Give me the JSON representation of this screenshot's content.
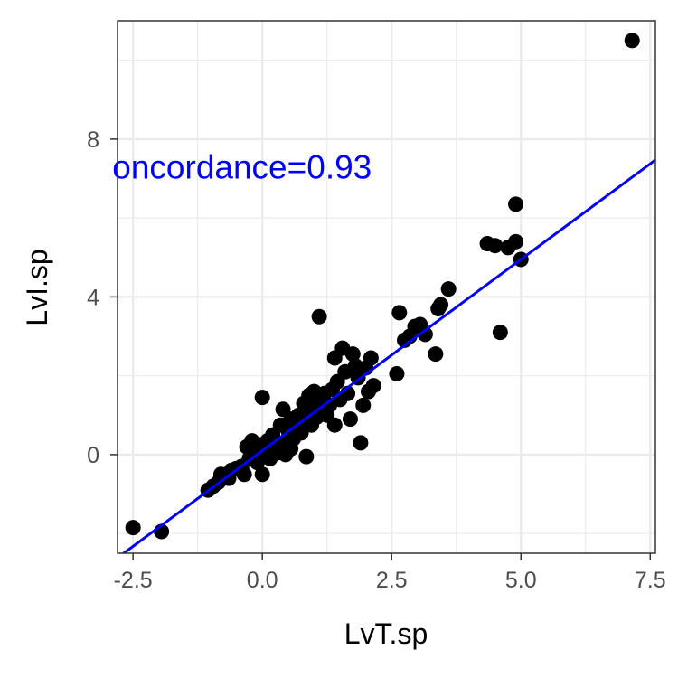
{
  "chart_data": {
    "type": "scatter",
    "xlabel": "LvT.sp",
    "ylabel": "LvI.sp",
    "xlim": [
      -2.8,
      7.6
    ],
    "ylim": [
      -2.5,
      11.0
    ],
    "x_ticks": [
      -2.5,
      0.0,
      2.5,
      5.0,
      7.5
    ],
    "x_tick_labels": [
      "-2.5",
      "0.0",
      "2.5",
      "5.0",
      "7.5"
    ],
    "y_ticks": [
      0,
      4,
      8
    ],
    "y_tick_labels": [
      "0",
      "4",
      "8"
    ],
    "x_minor_ticks": [
      -1.25,
      1.25,
      3.75,
      6.25
    ],
    "y_minor_ticks": [
      -2,
      2,
      6,
      10
    ],
    "grid": true,
    "annotation": {
      "text": "oncordance=0.93",
      "x": -2.9,
      "y": 7.3
    },
    "fit_line": {
      "intercept": 0.1,
      "slope": 0.97,
      "x_range": [
        -2.8,
        7.6
      ]
    },
    "colors": {
      "points": "#000000",
      "fit_line": "#0000ff",
      "annotation": "#0000ff",
      "grid": "#ebebeb",
      "border": "#333333"
    },
    "points": [
      {
        "x": -2.5,
        "y": -1.85
      },
      {
        "x": -1.95,
        "y": -1.95
      },
      {
        "x": -1.05,
        "y": -0.9
      },
      {
        "x": -0.95,
        "y": -0.8
      },
      {
        "x": -0.85,
        "y": -0.7
      },
      {
        "x": -0.8,
        "y": -0.5
      },
      {
        "x": -0.65,
        "y": -0.6
      },
      {
        "x": -0.6,
        "y": -0.4
      },
      {
        "x": -0.5,
        "y": -0.35
      },
      {
        "x": -0.4,
        "y": -0.3
      },
      {
        "x": -0.35,
        "y": -0.5
      },
      {
        "x": -0.3,
        "y": 0.2
      },
      {
        "x": -0.25,
        "y": -0.1
      },
      {
        "x": -0.2,
        "y": 0.35
      },
      {
        "x": -0.15,
        "y": 0.05
      },
      {
        "x": -0.1,
        "y": -0.2
      },
      {
        "x": -0.05,
        "y": 0.25
      },
      {
        "x": 0.0,
        "y": 1.45
      },
      {
        "x": 0.0,
        "y": -0.5
      },
      {
        "x": 0.05,
        "y": 0.1
      },
      {
        "x": 0.1,
        "y": 0.35
      },
      {
        "x": 0.15,
        "y": -0.1
      },
      {
        "x": 0.2,
        "y": 0.5
      },
      {
        "x": 0.25,
        "y": 0.2
      },
      {
        "x": 0.3,
        "y": 0.05
      },
      {
        "x": 0.35,
        "y": 0.75
      },
      {
        "x": 0.4,
        "y": 1.15
      },
      {
        "x": 0.4,
        "y": 0.3
      },
      {
        "x": 0.45,
        "y": 0.0
      },
      {
        "x": 0.5,
        "y": 0.6
      },
      {
        "x": 0.55,
        "y": 0.9
      },
      {
        "x": 0.55,
        "y": 0.15
      },
      {
        "x": 0.6,
        "y": 0.4
      },
      {
        "x": 0.65,
        "y": 0.7
      },
      {
        "x": 0.7,
        "y": 1.0
      },
      {
        "x": 0.75,
        "y": 0.55
      },
      {
        "x": 0.8,
        "y": 1.3
      },
      {
        "x": 0.8,
        "y": 0.8
      },
      {
        "x": 0.85,
        "y": -0.05
      },
      {
        "x": 0.9,
        "y": 1.5
      },
      {
        "x": 0.9,
        "y": 1.05
      },
      {
        "x": 0.95,
        "y": 0.75
      },
      {
        "x": 1.0,
        "y": 1.6
      },
      {
        "x": 1.0,
        "y": 1.2
      },
      {
        "x": 1.05,
        "y": 0.95
      },
      {
        "x": 1.1,
        "y": 3.5
      },
      {
        "x": 1.1,
        "y": 1.45
      },
      {
        "x": 1.15,
        "y": 1.1
      },
      {
        "x": 1.2,
        "y": 1.55
      },
      {
        "x": 1.25,
        "y": 1.0
      },
      {
        "x": 1.3,
        "y": 1.25
      },
      {
        "x": 1.35,
        "y": 1.65
      },
      {
        "x": 1.4,
        "y": 2.45
      },
      {
        "x": 1.4,
        "y": 0.75
      },
      {
        "x": 1.45,
        "y": 1.85
      },
      {
        "x": 1.5,
        "y": 1.4
      },
      {
        "x": 1.55,
        "y": 2.7
      },
      {
        "x": 1.6,
        "y": 2.1
      },
      {
        "x": 1.65,
        "y": 1.55
      },
      {
        "x": 1.7,
        "y": 0.9
      },
      {
        "x": 1.75,
        "y": 2.55
      },
      {
        "x": 1.8,
        "y": 2.25
      },
      {
        "x": 1.85,
        "y": 1.95
      },
      {
        "x": 1.9,
        "y": 0.3
      },
      {
        "x": 1.95,
        "y": 1.25
      },
      {
        "x": 2.0,
        "y": 2.2
      },
      {
        "x": 2.05,
        "y": 1.6
      },
      {
        "x": 2.1,
        "y": 2.45
      },
      {
        "x": 2.15,
        "y": 1.75
      },
      {
        "x": 2.6,
        "y": 2.05
      },
      {
        "x": 2.65,
        "y": 3.6
      },
      {
        "x": 2.75,
        "y": 2.9
      },
      {
        "x": 2.85,
        "y": 3.0
      },
      {
        "x": 2.95,
        "y": 3.25
      },
      {
        "x": 3.05,
        "y": 3.3
      },
      {
        "x": 3.15,
        "y": 3.05
      },
      {
        "x": 3.35,
        "y": 2.55
      },
      {
        "x": 3.4,
        "y": 3.7
      },
      {
        "x": 3.45,
        "y": 3.8
      },
      {
        "x": 3.6,
        "y": 4.2
      },
      {
        "x": 4.35,
        "y": 5.35
      },
      {
        "x": 4.5,
        "y": 5.3
      },
      {
        "x": 4.6,
        "y": 3.1
      },
      {
        "x": 4.75,
        "y": 5.25
      },
      {
        "x": 4.9,
        "y": 5.4
      },
      {
        "x": 4.9,
        "y": 6.35
      },
      {
        "x": 5.0,
        "y": 4.95
      },
      {
        "x": 7.15,
        "y": 10.5
      }
    ]
  }
}
